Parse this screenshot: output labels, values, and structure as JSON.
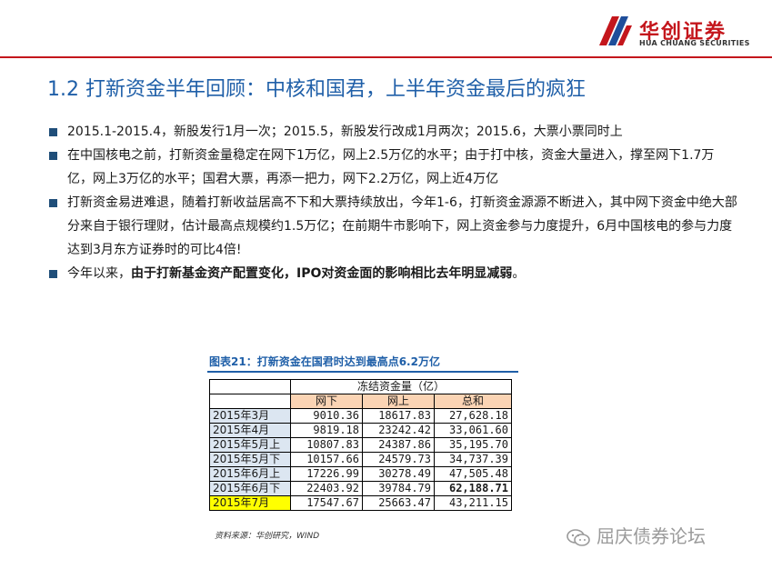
{
  "header": {
    "logo_cn": "华创证券",
    "logo_en": "HUA CHUANG SECURITIES",
    "logo_icon": "huachuang-logo-icon",
    "rule_color": "#c4161c"
  },
  "page_title": "1.2 打新资金半年回顾：中核和国君，上半年资金最后的疯狂",
  "bullets": [
    {
      "text": "2015.1-2015.4，新股发行1月一次；2015.5，新股发行改成1月两次；2015.6，大票小票同时上"
    },
    {
      "text": "在中国核电之前，打新资金量稳定在网下1万亿，网上2.5万亿的水平；由于打中核，资金大量进入，撑至网下1.7万亿，网上3万亿的水平；国君大票，再添一把力，网下2.2万亿，网上近4万亿"
    },
    {
      "text": "打新资金易进难退，随着打新收益居高不下和大票持续放出，今年1-6，打新资金源源不断进入，其中网下资金中绝大部分来自于银行理财，估计最高点规模约1.5万亿；在前期牛市影响下，网上资金参与力度提升，6月中国核电的参与力度达到3月东方证券时的可比4倍!"
    },
    {
      "prefix": "今年以来，",
      "bold": "由于打新基金资产配置变化，IPO对资金面的影响相比去年明显减弱",
      "suffix": "。"
    }
  ],
  "figure": {
    "title": "图表21：打新资金在国君时达到最高点6.2万亿",
    "source": "资料来源：华创研究，WIND"
  },
  "chart_data": {
    "type": "table",
    "group_header": "冻结资金量（亿）",
    "columns": [
      "网下",
      "网上",
      "总和"
    ],
    "rows": [
      {
        "label": "2015年3月",
        "values": [
          "9010.36",
          "18617.83",
          "27,628.18"
        ]
      },
      {
        "label": "2015年4月",
        "values": [
          "9819.18",
          "23242.42",
          "33,061.60"
        ]
      },
      {
        "label": "2015年5月上",
        "values": [
          "10807.83",
          "24387.86",
          "35,195.70"
        ]
      },
      {
        "label": "2015年5月下",
        "values": [
          "10157.66",
          "24579.73",
          "34,737.39"
        ]
      },
      {
        "label": "2015年6月上",
        "values": [
          "17226.99",
          "30278.49",
          "47,505.48"
        ]
      },
      {
        "label": "2015年6月下",
        "values": [
          "22403.92",
          "39784.79",
          "62,188.71"
        ]
      },
      {
        "label": "2015年7月",
        "values": [
          "17547.67",
          "25663.47",
          "43,211.15"
        ]
      }
    ],
    "highlight_color": "#ffff00",
    "row_label_color": "#dce6f1",
    "header_color": "#fbd4b4"
  },
  "watermark": {
    "text": "屈庆债券论坛",
    "icon": "wechat-icon"
  }
}
